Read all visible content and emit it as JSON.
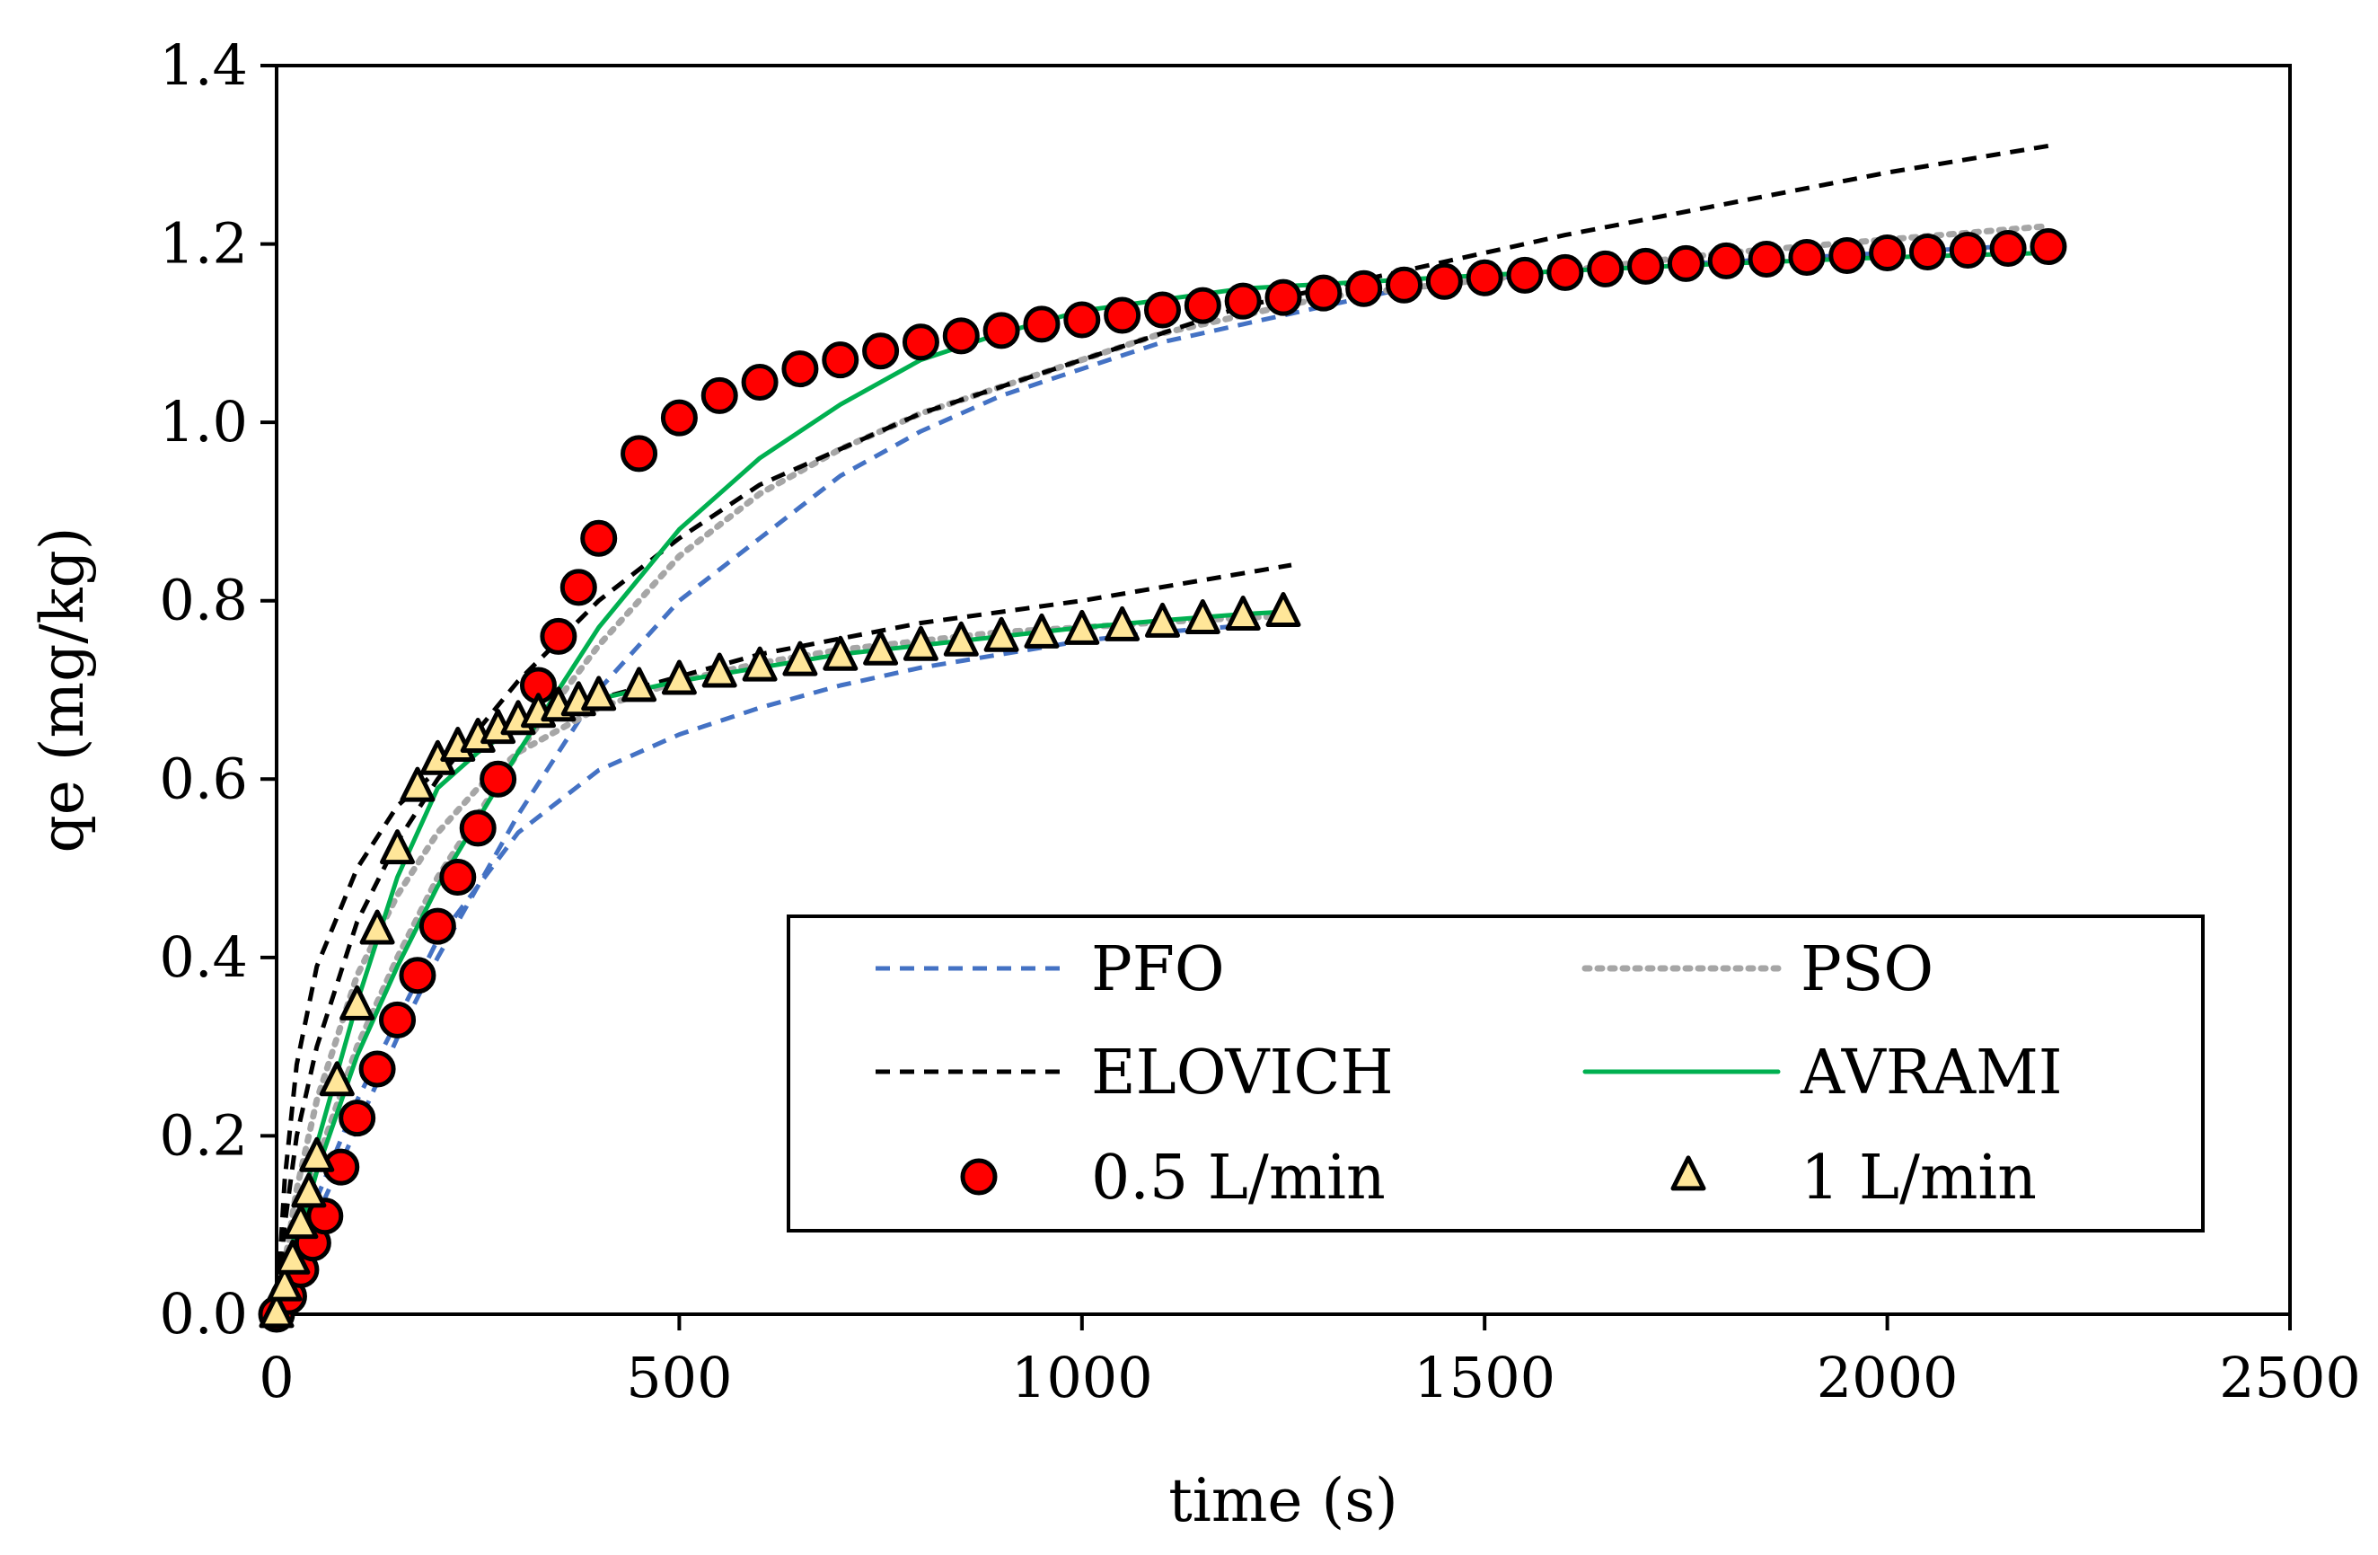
{
  "chart_data": {
    "type": "scatter",
    "title": "",
    "xlabel": "time (s)",
    "ylabel": "qe (mg/kg)",
    "xlim": [
      0,
      2500
    ],
    "ylim": [
      0,
      1.4
    ],
    "xticks": [
      0,
      500,
      1000,
      1500,
      2000,
      2500
    ],
    "xtick_labels": [
      "0",
      "500",
      "1000",
      "1500",
      "2000",
      "2500"
    ],
    "yticks": [
      0,
      0.2,
      0.4,
      0.6,
      0.8,
      1.0,
      1.2,
      1.4
    ],
    "ytick_labels": [
      "0.0",
      "0.2",
      "0.4",
      "0.6",
      "0.8",
      "1.0",
      "1.2",
      "1.4"
    ],
    "grid": false,
    "legend_position": "bottom-right",
    "legend": [
      {
        "label": "PFO",
        "kind": "line",
        "color": "#4472C4",
        "dash": "dashed"
      },
      {
        "label": "PSO",
        "kind": "line",
        "color": "#A6A6A6",
        "dash": "dotted"
      },
      {
        "label": "ELOVICH",
        "kind": "line",
        "color": "#000000",
        "dash": "dashed"
      },
      {
        "label": "AVRAMI",
        "kind": "line",
        "color": "#00B050",
        "dash": "solid"
      },
      {
        "label": "0.5 L/min",
        "kind": "marker",
        "marker": "circle",
        "color": "#FF0000"
      },
      {
        "label": "1 L/min",
        "kind": "marker",
        "marker": "triangle",
        "color": "#FFE699"
      }
    ],
    "series": [
      {
        "name": "0.5 L/min",
        "kind": "scatter",
        "marker": "circle",
        "color": "#FF0000",
        "x": [
          0,
          15,
          30,
          45,
          60,
          80,
          100,
          125,
          150,
          175,
          200,
          225,
          250,
          275,
          325,
          350,
          375,
          400,
          450,
          500,
          550,
          600,
          650,
          700,
          750,
          800,
          850,
          900,
          950,
          1000,
          1050,
          1100,
          1150,
          1200,
          1250,
          1300,
          1350,
          1400,
          1450,
          1500,
          1550,
          1600,
          1650,
          1700,
          1750,
          1800,
          1850,
          1900,
          1950,
          2000,
          2050,
          2100,
          2150,
          2200
        ],
        "y": [
          0.0,
          0.02,
          0.05,
          0.08,
          0.11,
          0.165,
          0.22,
          0.275,
          0.33,
          0.38,
          0.435,
          0.49,
          0.545,
          0.6,
          0.705,
          0.76,
          0.815,
          0.87,
          0.965,
          1.005,
          1.03,
          1.045,
          1.06,
          1.07,
          1.08,
          1.09,
          1.097,
          1.103,
          1.11,
          1.115,
          1.12,
          1.126,
          1.131,
          1.136,
          1.14,
          1.145,
          1.15,
          1.154,
          1.158,
          1.162,
          1.165,
          1.168,
          1.172,
          1.175,
          1.178,
          1.181,
          1.183,
          1.185,
          1.187,
          1.19,
          1.191,
          1.193,
          1.195,
          1.197
        ]
      },
      {
        "name": "1 L/min",
        "kind": "scatter",
        "marker": "triangle",
        "color": "#FFE699",
        "x": [
          0,
          10,
          20,
          30,
          40,
          50,
          75,
          100,
          125,
          150,
          175,
          200,
          225,
          250,
          275,
          300,
          325,
          350,
          375,
          400,
          450,
          500,
          550,
          600,
          650,
          700,
          750,
          800,
          850,
          900,
          950,
          1000,
          1050,
          1100,
          1150,
          1200,
          1250
        ],
        "y": [
          0.0,
          0.03,
          0.06,
          0.1,
          0.135,
          0.175,
          0.26,
          0.345,
          0.43,
          0.52,
          0.59,
          0.62,
          0.635,
          0.645,
          0.655,
          0.665,
          0.673,
          0.68,
          0.686,
          0.692,
          0.702,
          0.71,
          0.718,
          0.725,
          0.731,
          0.737,
          0.743,
          0.748,
          0.753,
          0.758,
          0.762,
          0.766,
          0.77,
          0.774,
          0.778,
          0.782,
          0.786
        ]
      },
      {
        "name": "PFO (0.5 L/min)",
        "kind": "line",
        "color": "#4472C4",
        "dash": "dashed",
        "x": [
          0,
          50,
          100,
          150,
          200,
          300,
          400,
          500,
          600,
          700,
          800,
          900,
          1000,
          1100,
          1200,
          1300,
          1400,
          1500,
          1600,
          1800,
          2000,
          2200
        ],
        "y": [
          0,
          0.11,
          0.21,
          0.31,
          0.4,
          0.56,
          0.7,
          0.8,
          0.87,
          0.94,
          0.99,
          1.03,
          1.06,
          1.09,
          1.11,
          1.13,
          1.15,
          1.16,
          1.17,
          1.18,
          1.19,
          1.2
        ]
      },
      {
        "name": "PFO (1 L/min)",
        "kind": "line",
        "color": "#4472C4",
        "dash": "dashed",
        "x": [
          0,
          50,
          100,
          150,
          200,
          300,
          400,
          500,
          600,
          700,
          800,
          900,
          1000,
          1100,
          1200,
          1260
        ],
        "y": [
          0,
          0.13,
          0.24,
          0.33,
          0.42,
          0.54,
          0.61,
          0.65,
          0.68,
          0.705,
          0.725,
          0.74,
          0.755,
          0.765,
          0.772,
          0.776
        ]
      },
      {
        "name": "PSO (0.5 L/min)",
        "kind": "line",
        "color": "#A6A6A6",
        "dash": "dotted",
        "x": [
          0,
          25,
          50,
          100,
          150,
          200,
          300,
          400,
          500,
          600,
          700,
          800,
          900,
          1000,
          1100,
          1200,
          1300,
          1400,
          1500,
          1600,
          1800,
          2000,
          2200
        ],
        "y": [
          0,
          0.09,
          0.17,
          0.3,
          0.4,
          0.49,
          0.63,
          0.75,
          0.85,
          0.92,
          0.97,
          1.01,
          1.04,
          1.07,
          1.1,
          1.12,
          1.14,
          1.15,
          1.16,
          1.17,
          1.19,
          1.205,
          1.22
        ]
      },
      {
        "name": "PSO (1 L/min)",
        "kind": "line",
        "color": "#A6A6A6",
        "dash": "dotted",
        "x": [
          0,
          25,
          50,
          100,
          150,
          200,
          250,
          300,
          400,
          500,
          600,
          700,
          800,
          900,
          1000,
          1100,
          1200,
          1260
        ],
        "y": [
          0,
          0.14,
          0.24,
          0.38,
          0.47,
          0.54,
          0.59,
          0.63,
          0.68,
          0.71,
          0.73,
          0.745,
          0.755,
          0.765,
          0.77,
          0.776,
          0.781,
          0.783
        ]
      },
      {
        "name": "ELOVICH (0.5 L/min)",
        "kind": "line",
        "color": "#000000",
        "dash": "dashed",
        "x": [
          0,
          10,
          25,
          50,
          100,
          150,
          200,
          300,
          400,
          500,
          600,
          800,
          1000,
          1200,
          1400,
          1600,
          1800,
          2000,
          2200
        ],
        "y": [
          0,
          0.1,
          0.2,
          0.3,
          0.44,
          0.53,
          0.6,
          0.71,
          0.8,
          0.87,
          0.93,
          1.01,
          1.07,
          1.13,
          1.17,
          1.21,
          1.245,
          1.28,
          1.31
        ]
      },
      {
        "name": "ELOVICH (1 L/min)",
        "kind": "line",
        "color": "#000000",
        "dash": "dashed",
        "x": [
          0,
          10,
          25,
          50,
          100,
          150,
          200,
          300,
          400,
          500,
          600,
          800,
          1000,
          1260
        ],
        "y": [
          0,
          0.15,
          0.28,
          0.39,
          0.5,
          0.57,
          0.61,
          0.66,
          0.69,
          0.715,
          0.74,
          0.775,
          0.8,
          0.84
        ]
      },
      {
        "name": "AVRAMI (0.5 L/min)",
        "kind": "line",
        "color": "#00B050",
        "dash": "solid",
        "x": [
          0,
          50,
          100,
          150,
          200,
          300,
          400,
          500,
          600,
          700,
          800,
          900,
          1000,
          1200,
          1400,
          1600,
          1800,
          2000,
          2200
        ],
        "y": [
          0,
          0.16,
          0.29,
          0.39,
          0.48,
          0.63,
          0.77,
          0.88,
          0.96,
          1.02,
          1.07,
          1.1,
          1.125,
          1.15,
          1.16,
          1.17,
          1.178,
          1.185,
          1.19
        ]
      },
      {
        "name": "AVRAMI (1 L/min)",
        "kind": "line",
        "color": "#00B050",
        "dash": "solid",
        "x": [
          0,
          25,
          50,
          100,
          150,
          200,
          250,
          300,
          400,
          500,
          600,
          700,
          800,
          900,
          1000,
          1100,
          1200,
          1260
        ],
        "y": [
          0,
          0.1,
          0.19,
          0.35,
          0.49,
          0.59,
          0.63,
          0.66,
          0.69,
          0.71,
          0.725,
          0.74,
          0.75,
          0.76,
          0.77,
          0.778,
          0.785,
          0.788
        ]
      }
    ]
  }
}
